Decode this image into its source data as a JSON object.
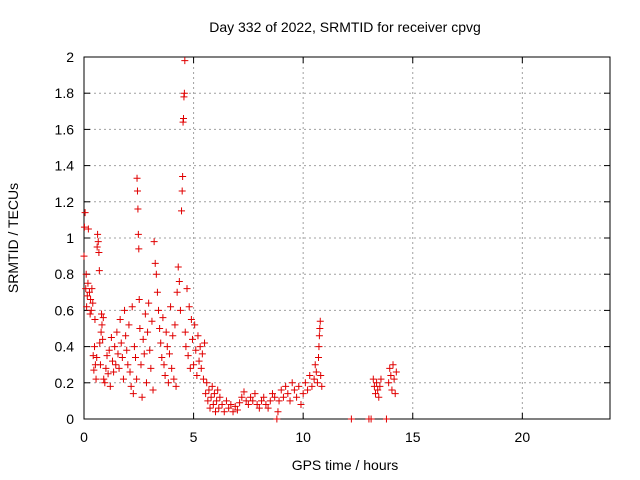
{
  "chart_data": {
    "type": "scatter",
    "title": "Day 332 of 2022, SRMTID for receiver cpvg",
    "xlabel": "GPS time / hours",
    "ylabel": "SRMTID / TECUs",
    "xlim": [
      0,
      24
    ],
    "ylim": [
      0,
      2
    ],
    "xticks": [
      0,
      5,
      10,
      15,
      20
    ],
    "yticks": [
      0,
      0.2,
      0.4,
      0.6,
      0.8,
      1,
      1.2,
      1.4,
      1.6,
      1.8,
      2
    ],
    "xtick_labels": [
      "0",
      "5",
      "10",
      "15",
      "20"
    ],
    "ytick_labels": [
      "0",
      "0.2",
      "0.4",
      "0.6",
      "0.8",
      "1",
      "1.2",
      "1.4",
      "1.6",
      "1.8",
      "2"
    ],
    "grid": true,
    "marker": "plus",
    "marker_color": "#e00000",
    "series": [
      {
        "points": [
          [
            0.0,
            0.9
          ],
          [
            0.02,
            1.06
          ],
          [
            0.05,
            1.14
          ],
          [
            0.08,
            0.72
          ],
          [
            0.1,
            0.8
          ],
          [
            0.12,
            0.62
          ],
          [
            0.15,
            0.68
          ],
          [
            0.18,
            0.75
          ],
          [
            0.2,
            1.05
          ],
          [
            0.25,
            0.7
          ],
          [
            0.28,
            0.58
          ],
          [
            0.3,
            0.66
          ],
          [
            0.33,
            0.6
          ],
          [
            0.36,
            0.72
          ],
          [
            0.4,
            0.64
          ],
          [
            0.42,
            0.35
          ],
          [
            0.45,
            0.27
          ],
          [
            0.48,
            0.4
          ],
          [
            0.5,
            0.55
          ],
          [
            0.52,
            0.3
          ],
          [
            0.55,
            0.22
          ],
          [
            0.58,
            0.34
          ],
          [
            0.6,
            0.95
          ],
          [
            0.62,
            1.02
          ],
          [
            0.65,
            0.98
          ],
          [
            0.68,
            0.92
          ],
          [
            0.7,
            0.82
          ],
          [
            0.72,
            0.42
          ],
          [
            0.75,
            0.3
          ],
          [
            0.78,
            0.48
          ],
          [
            0.8,
            0.58
          ],
          [
            0.82,
            0.52
          ],
          [
            0.85,
            0.44
          ],
          [
            0.88,
            0.56
          ],
          [
            0.9,
            0.22
          ],
          [
            0.95,
            0.2
          ],
          [
            1.0,
            0.28
          ],
          [
            1.05,
            0.35
          ],
          [
            1.1,
            0.25
          ],
          [
            1.15,
            0.38
          ],
          [
            1.2,
            0.18
          ],
          [
            1.25,
            0.45
          ],
          [
            1.3,
            0.32
          ],
          [
            1.35,
            0.26
          ],
          [
            1.4,
            0.4
          ],
          [
            1.45,
            0.3
          ],
          [
            1.5,
            0.48
          ],
          [
            1.55,
            0.36
          ],
          [
            1.6,
            0.28
          ],
          [
            1.65,
            0.55
          ],
          [
            1.7,
            0.42
          ],
          [
            1.75,
            0.34
          ],
          [
            1.8,
            0.22
          ],
          [
            1.85,
            0.6
          ],
          [
            1.9,
            0.46
          ],
          [
            1.95,
            0.38
          ],
          [
            2.0,
            0.3
          ],
          [
            2.05,
            0.52
          ],
          [
            2.1,
            0.26
          ],
          [
            2.15,
            0.18
          ],
          [
            2.2,
            0.62
          ],
          [
            2.25,
            0.14
          ],
          [
            2.3,
            0.4
          ],
          [
            2.35,
            0.34
          ],
          [
            2.4,
            0.22
          ],
          [
            2.42,
            1.33
          ],
          [
            2.44,
            1.26
          ],
          [
            2.46,
            1.16
          ],
          [
            2.48,
            1.02
          ],
          [
            2.5,
            0.94
          ],
          [
            2.52,
            0.66
          ],
          [
            2.55,
            0.5
          ],
          [
            2.6,
            0.3
          ],
          [
            2.65,
            0.12
          ],
          [
            2.7,
            0.44
          ],
          [
            2.75,
            0.36
          ],
          [
            2.8,
            0.58
          ],
          [
            2.85,
            0.2
          ],
          [
            2.9,
            0.48
          ],
          [
            2.95,
            0.64
          ],
          [
            3.0,
            0.38
          ],
          [
            3.05,
            0.28
          ],
          [
            3.1,
            0.54
          ],
          [
            3.15,
            0.16
          ],
          [
            3.2,
            0.98
          ],
          [
            3.25,
            0.86
          ],
          [
            3.3,
            0.8
          ],
          [
            3.35,
            0.7
          ],
          [
            3.4,
            0.6
          ],
          [
            3.45,
            0.5
          ],
          [
            3.5,
            0.42
          ],
          [
            3.55,
            0.34
          ],
          [
            3.6,
            0.56
          ],
          [
            3.65,
            0.3
          ],
          [
            3.7,
            0.24
          ],
          [
            3.75,
            0.48
          ],
          [
            3.8,
            0.4
          ],
          [
            3.85,
            0.2
          ],
          [
            3.9,
            0.36
          ],
          [
            3.95,
            0.62
          ],
          [
            4.0,
            0.28
          ],
          [
            4.05,
            0.46
          ],
          [
            4.1,
            0.22
          ],
          [
            4.15,
            0.52
          ],
          [
            4.2,
            0.18
          ],
          [
            4.25,
            0.7
          ],
          [
            4.3,
            0.84
          ],
          [
            4.35,
            0.76
          ],
          [
            4.4,
            0.6
          ],
          [
            4.45,
            1.15
          ],
          [
            4.48,
            1.26
          ],
          [
            4.5,
            1.34
          ],
          [
            4.52,
            1.64
          ],
          [
            4.54,
            1.66
          ],
          [
            4.56,
            1.78
          ],
          [
            4.58,
            1.8
          ],
          [
            4.6,
            1.98
          ],
          [
            4.62,
            0.48
          ],
          [
            4.65,
            0.4
          ],
          [
            4.7,
            0.72
          ],
          [
            4.75,
            0.35
          ],
          [
            4.8,
            0.62
          ],
          [
            4.85,
            0.28
          ],
          [
            4.9,
            0.55
          ],
          [
            4.95,
            0.44
          ],
          [
            5.0,
            0.3
          ],
          [
            5.05,
            0.52
          ],
          [
            5.1,
            0.38
          ],
          [
            5.15,
            0.24
          ],
          [
            5.2,
            0.46
          ],
          [
            5.25,
            0.32
          ],
          [
            5.3,
            0.4
          ],
          [
            5.35,
            0.28
          ],
          [
            5.4,
            0.36
          ],
          [
            5.45,
            0.22
          ],
          [
            5.5,
            0.42
          ],
          [
            5.55,
            0.14
          ],
          [
            5.6,
            0.2
          ],
          [
            5.65,
            0.1
          ],
          [
            5.7,
            0.16
          ],
          [
            5.75,
            0.06
          ],
          [
            5.8,
            0.12
          ],
          [
            5.85,
            0.18
          ],
          [
            5.9,
            0.08
          ],
          [
            5.95,
            0.14
          ],
          [
            6.0,
            0.04
          ],
          [
            6.05,
            0.1
          ],
          [
            6.1,
            0.16
          ],
          [
            6.15,
            0.06
          ],
          [
            6.2,
            0.12
          ],
          [
            6.3,
            0.08
          ],
          [
            6.4,
            0.04
          ],
          [
            6.5,
            0.1
          ],
          [
            6.6,
            0.06
          ],
          [
            6.7,
            0.08
          ],
          [
            6.8,
            0.04
          ],
          [
            6.9,
            0.07
          ],
          [
            7.0,
            0.05
          ],
          [
            7.1,
            0.09
          ],
          [
            7.2,
            0.12
          ],
          [
            7.3,
            0.15
          ],
          [
            7.4,
            0.1
          ],
          [
            7.5,
            0.08
          ],
          [
            7.6,
            0.12
          ],
          [
            7.7,
            0.1
          ],
          [
            7.8,
            0.14
          ],
          [
            7.9,
            0.08
          ],
          [
            8.0,
            0.06
          ],
          [
            8.1,
            0.1
          ],
          [
            8.2,
            0.12
          ],
          [
            8.3,
            0.08
          ],
          [
            8.4,
            0.06
          ],
          [
            8.5,
            0.1
          ],
          [
            8.6,
            0.14
          ],
          [
            8.7,
            0.12
          ],
          [
            8.8,
            0.0
          ],
          [
            8.85,
            0.04
          ],
          [
            8.9,
            0.1
          ],
          [
            9.0,
            0.16
          ],
          [
            9.1,
            0.12
          ],
          [
            9.2,
            0.18
          ],
          [
            9.3,
            0.14
          ],
          [
            9.4,
            0.1
          ],
          [
            9.5,
            0.2
          ],
          [
            9.6,
            0.16
          ],
          [
            9.7,
            0.12
          ],
          [
            9.8,
            0.18
          ],
          [
            9.9,
            0.08
          ],
          [
            10.0,
            0.14
          ],
          [
            10.1,
            0.2
          ],
          [
            10.2,
            0.16
          ],
          [
            10.3,
            0.24
          ],
          [
            10.4,
            0.18
          ],
          [
            10.5,
            0.22
          ],
          [
            10.55,
            0.3
          ],
          [
            10.6,
            0.26
          ],
          [
            10.65,
            0.2
          ],
          [
            10.7,
            0.34
          ],
          [
            10.72,
            0.4
          ],
          [
            10.74,
            0.46
          ],
          [
            10.76,
            0.5
          ],
          [
            10.78,
            0.54
          ],
          [
            10.8,
            0.24
          ],
          [
            10.85,
            0.18
          ],
          [
            12.2,
            0.0
          ],
          [
            13.0,
            0.0
          ],
          [
            13.1,
            0.0
          ],
          [
            13.2,
            0.22
          ],
          [
            13.25,
            0.18
          ],
          [
            13.3,
            0.14
          ],
          [
            13.35,
            0.2
          ],
          [
            13.4,
            0.16
          ],
          [
            13.45,
            0.12
          ],
          [
            13.5,
            0.18
          ],
          [
            13.55,
            0.22
          ],
          [
            13.8,
            0.0
          ],
          [
            13.9,
            0.2
          ],
          [
            13.95,
            0.28
          ],
          [
            14.0,
            0.24
          ],
          [
            14.05,
            0.16
          ],
          [
            14.1,
            0.3
          ],
          [
            14.15,
            0.22
          ],
          [
            14.2,
            0.14
          ],
          [
            14.25,
            0.26
          ]
        ]
      }
    ]
  }
}
